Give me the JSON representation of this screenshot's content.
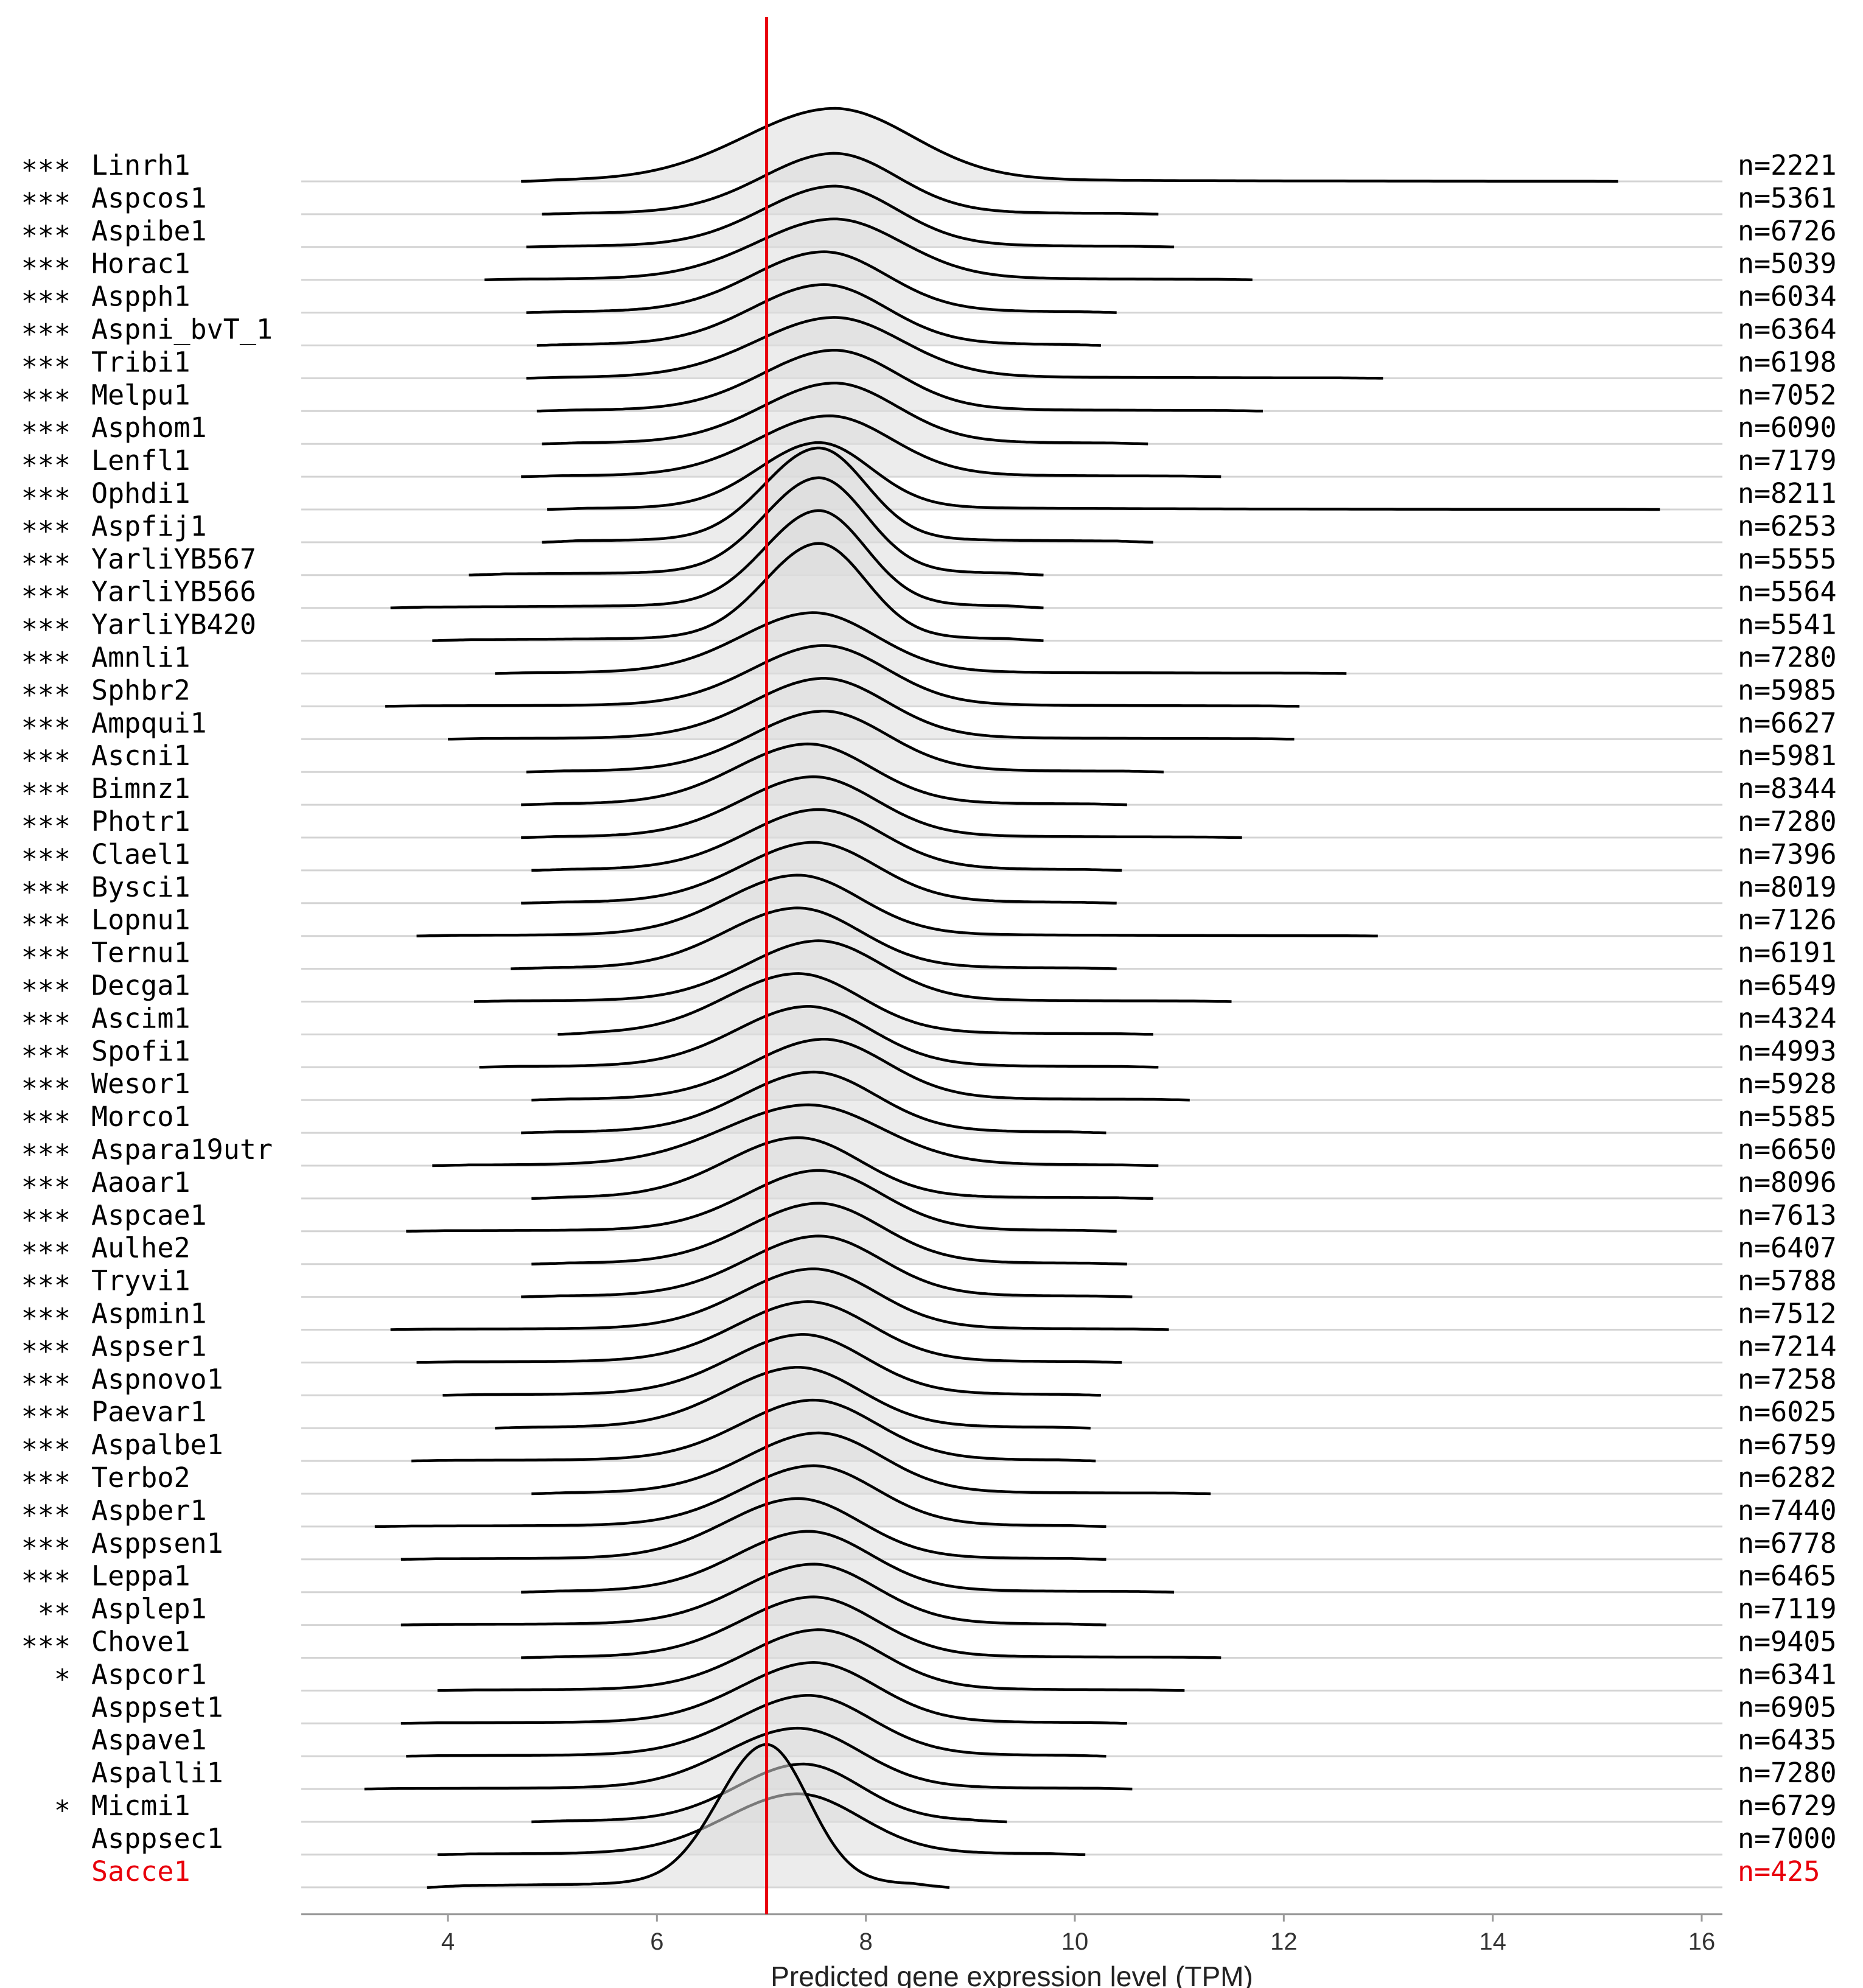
{
  "chart_data": {
    "type": "ridgeline",
    "xlabel": "Predicted gene expression level (TPM)",
    "xlim": [
      2.5,
      16.2
    ],
    "xticks": [
      4,
      6,
      8,
      10,
      12,
      14,
      16
    ],
    "reference_line": {
      "x": 7.05,
      "color": "#e8000b"
    },
    "highlight_color": "#e8000b",
    "baseline_color": "#d4d4d4",
    "fill_color": "#dcdcdc",
    "series": [
      {
        "name": "Linrh1",
        "sig": "***",
        "n": "n=2221",
        "min": 4.7,
        "max": 15.2,
        "mode": 7.7,
        "width": 0.75,
        "height": 1.2
      },
      {
        "name": "Aspcos1",
        "sig": "***",
        "n": "n=5361",
        "min": 4.9,
        "max": 10.8,
        "mode": 7.7,
        "width": 0.6,
        "height": 1.0
      },
      {
        "name": "Aspibe1",
        "sig": "***",
        "n": "n=6726",
        "min": 4.75,
        "max": 10.95,
        "mode": 7.7,
        "width": 0.6,
        "height": 1.0
      },
      {
        "name": "Horac1",
        "sig": "***",
        "n": "n=5039",
        "min": 4.35,
        "max": 11.7,
        "mode": 7.7,
        "width": 0.65,
        "height": 1.0
      },
      {
        "name": "Aspph1",
        "sig": "***",
        "n": "n=6034",
        "min": 4.75,
        "max": 10.4,
        "mode": 7.6,
        "width": 0.6,
        "height": 1.0
      },
      {
        "name": "Aspni_bvT_1",
        "sig": "***",
        "n": "n=6364",
        "min": 4.85,
        "max": 10.25,
        "mode": 7.6,
        "width": 0.6,
        "height": 1.0
      },
      {
        "name": "Tribi1",
        "sig": "***",
        "n": "n=6198",
        "min": 4.75,
        "max": 12.95,
        "mode": 7.7,
        "width": 0.65,
        "height": 1.0
      },
      {
        "name": "Melpu1",
        "sig": "***",
        "n": "n=7052",
        "min": 4.85,
        "max": 11.8,
        "mode": 7.7,
        "width": 0.6,
        "height": 1.0
      },
      {
        "name": "Asphom1",
        "sig": "***",
        "n": "n=6090",
        "min": 4.9,
        "max": 10.7,
        "mode": 7.7,
        "width": 0.6,
        "height": 1.0
      },
      {
        "name": "Lenfl1",
        "sig": "***",
        "n": "n=7179",
        "min": 4.7,
        "max": 11.4,
        "mode": 7.65,
        "width": 0.6,
        "height": 1.0
      },
      {
        "name": "Ophdi1",
        "sig": "***",
        "n": "n=8211",
        "min": 4.95,
        "max": 15.6,
        "mode": 7.55,
        "width": 0.5,
        "height": 1.1
      },
      {
        "name": "Aspfij1",
        "sig": "***",
        "n": "n=6253",
        "min": 4.9,
        "max": 10.75,
        "mode": 7.55,
        "width": 0.45,
        "height": 1.55
      },
      {
        "name": "YarliYB567",
        "sig": "***",
        "n": "n=5555",
        "min": 4.2,
        "max": 9.7,
        "mode": 7.55,
        "width": 0.45,
        "height": 1.6
      },
      {
        "name": "YarliYB566",
        "sig": "***",
        "n": "n=5564",
        "min": 3.45,
        "max": 9.7,
        "mode": 7.55,
        "width": 0.45,
        "height": 1.6
      },
      {
        "name": "YarliYB420",
        "sig": "***",
        "n": "n=5541",
        "min": 3.85,
        "max": 9.7,
        "mode": 7.55,
        "width": 0.45,
        "height": 1.6
      },
      {
        "name": "Amnli1",
        "sig": "***",
        "n": "n=7280",
        "min": 4.45,
        "max": 12.6,
        "mode": 7.5,
        "width": 0.6,
        "height": 1.0
      },
      {
        "name": "Sphbr2",
        "sig": "***",
        "n": "n=5985",
        "min": 3.4,
        "max": 12.15,
        "mode": 7.6,
        "width": 0.6,
        "height": 1.0
      },
      {
        "name": "Ampqui1",
        "sig": "***",
        "n": "n=6627",
        "min": 4.0,
        "max": 12.1,
        "mode": 7.6,
        "width": 0.6,
        "height": 1.0
      },
      {
        "name": "Ascni1",
        "sig": "***",
        "n": "n=5981",
        "min": 4.75,
        "max": 10.85,
        "mode": 7.6,
        "width": 0.6,
        "height": 1.0
      },
      {
        "name": "Bimnz1",
        "sig": "***",
        "n": "n=8344",
        "min": 4.7,
        "max": 10.5,
        "mode": 7.45,
        "width": 0.6,
        "height": 1.0
      },
      {
        "name": "Photr1",
        "sig": "***",
        "n": "n=7280",
        "min": 4.7,
        "max": 11.6,
        "mode": 7.5,
        "width": 0.6,
        "height": 1.0
      },
      {
        "name": "Clael1",
        "sig": "***",
        "n": "n=7396",
        "min": 4.8,
        "max": 10.45,
        "mode": 7.55,
        "width": 0.6,
        "height": 1.0
      },
      {
        "name": "Bysci1",
        "sig": "***",
        "n": "n=8019",
        "min": 4.7,
        "max": 10.4,
        "mode": 7.5,
        "width": 0.6,
        "height": 1.0
      },
      {
        "name": "Lopnu1",
        "sig": "***",
        "n": "n=7126",
        "min": 3.7,
        "max": 12.9,
        "mode": 7.35,
        "width": 0.6,
        "height": 1.0
      },
      {
        "name": "Ternu1",
        "sig": "***",
        "n": "n=6191",
        "min": 4.6,
        "max": 10.4,
        "mode": 7.35,
        "width": 0.6,
        "height": 1.0
      },
      {
        "name": "Decga1",
        "sig": "***",
        "n": "n=6549",
        "min": 4.25,
        "max": 11.5,
        "mode": 7.55,
        "width": 0.6,
        "height": 1.0
      },
      {
        "name": "Ascim1",
        "sig": "***",
        "n": "n=4324",
        "min": 5.05,
        "max": 10.75,
        "mode": 7.35,
        "width": 0.6,
        "height": 1.0
      },
      {
        "name": "Spofi1",
        "sig": "***",
        "n": "n=4993",
        "min": 4.3,
        "max": 10.8,
        "mode": 7.45,
        "width": 0.6,
        "height": 1.0
      },
      {
        "name": "Wesor1",
        "sig": "***",
        "n": "n=5928",
        "min": 4.8,
        "max": 11.1,
        "mode": 7.6,
        "width": 0.6,
        "height": 1.0
      },
      {
        "name": "Morco1",
        "sig": "***",
        "n": "n=5585",
        "min": 4.7,
        "max": 10.3,
        "mode": 7.5,
        "width": 0.6,
        "height": 1.0
      },
      {
        "name": "Aspara19utr",
        "sig": "***",
        "n": "n=6650",
        "min": 3.85,
        "max": 10.8,
        "mode": 7.45,
        "width": 0.7,
        "height": 1.0
      },
      {
        "name": "Aaoar1",
        "sig": "***",
        "n": "n=8096",
        "min": 4.8,
        "max": 10.75,
        "mode": 7.35,
        "width": 0.6,
        "height": 1.0
      },
      {
        "name": "Aspcae1",
        "sig": "***",
        "n": "n=7613",
        "min": 3.6,
        "max": 10.4,
        "mode": 7.55,
        "width": 0.6,
        "height": 1.0
      },
      {
        "name": "Aulhe2",
        "sig": "***",
        "n": "n=6407",
        "min": 4.8,
        "max": 10.5,
        "mode": 7.55,
        "width": 0.6,
        "height": 1.0
      },
      {
        "name": "Tryvi1",
        "sig": "***",
        "n": "n=5788",
        "min": 4.7,
        "max": 10.55,
        "mode": 7.55,
        "width": 0.6,
        "height": 1.0
      },
      {
        "name": "Aspmin1",
        "sig": "***",
        "n": "n=7512",
        "min": 3.45,
        "max": 10.9,
        "mode": 7.5,
        "width": 0.6,
        "height": 1.0
      },
      {
        "name": "Aspser1",
        "sig": "***",
        "n": "n=7214",
        "min": 3.7,
        "max": 10.45,
        "mode": 7.45,
        "width": 0.6,
        "height": 1.0
      },
      {
        "name": "Aspnovo1",
        "sig": "***",
        "n": "n=7258",
        "min": 3.95,
        "max": 10.25,
        "mode": 7.4,
        "width": 0.6,
        "height": 1.0
      },
      {
        "name": "Paevar1",
        "sig": "***",
        "n": "n=6025",
        "min": 4.45,
        "max": 10.15,
        "mode": 7.35,
        "width": 0.6,
        "height": 1.0
      },
      {
        "name": "Aspalbe1",
        "sig": "***",
        "n": "n=6759",
        "min": 3.65,
        "max": 10.2,
        "mode": 7.5,
        "width": 0.6,
        "height": 1.0
      },
      {
        "name": "Terbo2",
        "sig": "***",
        "n": "n=6282",
        "min": 4.8,
        "max": 11.3,
        "mode": 7.55,
        "width": 0.6,
        "height": 1.0
      },
      {
        "name": "Aspber1",
        "sig": "***",
        "n": "n=7440",
        "min": 3.3,
        "max": 10.3,
        "mode": 7.5,
        "width": 0.6,
        "height": 1.0
      },
      {
        "name": "Asppsen1",
        "sig": "***",
        "n": "n=6778",
        "min": 3.55,
        "max": 10.3,
        "mode": 7.35,
        "width": 0.6,
        "height": 1.0
      },
      {
        "name": "Leppa1",
        "sig": "***",
        "n": "n=6465",
        "min": 4.7,
        "max": 10.95,
        "mode": 7.45,
        "width": 0.6,
        "height": 1.0
      },
      {
        "name": "Asplep1",
        "sig": "**",
        "n": "n=7119",
        "min": 3.55,
        "max": 10.3,
        "mode": 7.5,
        "width": 0.6,
        "height": 1.0
      },
      {
        "name": "Chove1",
        "sig": "***",
        "n": "n=9405",
        "min": 4.7,
        "max": 11.4,
        "mode": 7.5,
        "width": 0.6,
        "height": 1.0
      },
      {
        "name": "Aspcor1",
        "sig": "*",
        "n": "n=6341",
        "min": 3.9,
        "max": 11.05,
        "mode": 7.55,
        "width": 0.6,
        "height": 1.0
      },
      {
        "name": "Asppset1",
        "sig": "",
        "n": "n=6905",
        "min": 3.55,
        "max": 10.5,
        "mode": 7.5,
        "width": 0.6,
        "height": 1.0
      },
      {
        "name": "Aspave1",
        "sig": "",
        "n": "n=6435",
        "min": 3.6,
        "max": 10.3,
        "mode": 7.45,
        "width": 0.6,
        "height": 1.0
      },
      {
        "name": "Aspalli1",
        "sig": "",
        "n": "n=7280",
        "min": 3.2,
        "max": 10.55,
        "mode": 7.35,
        "width": 0.6,
        "height": 1.0
      },
      {
        "name": "Micmi1",
        "sig": "*",
        "n": "n=6729",
        "min": 4.8,
        "max": 9.35,
        "mode": 7.4,
        "width": 0.55,
        "height": 0.95
      },
      {
        "name": "Asppsec1",
        "sig": "",
        "n": "n=7000",
        "min": 3.9,
        "max": 10.1,
        "mode": 7.35,
        "width": 0.6,
        "height": 1.0
      },
      {
        "name": "Sacce1",
        "sig": "",
        "n": "n=425",
        "min": 3.8,
        "max": 8.8,
        "mode": 7.05,
        "width": 0.4,
        "height": 2.35,
        "highlight": true
      }
    ]
  }
}
